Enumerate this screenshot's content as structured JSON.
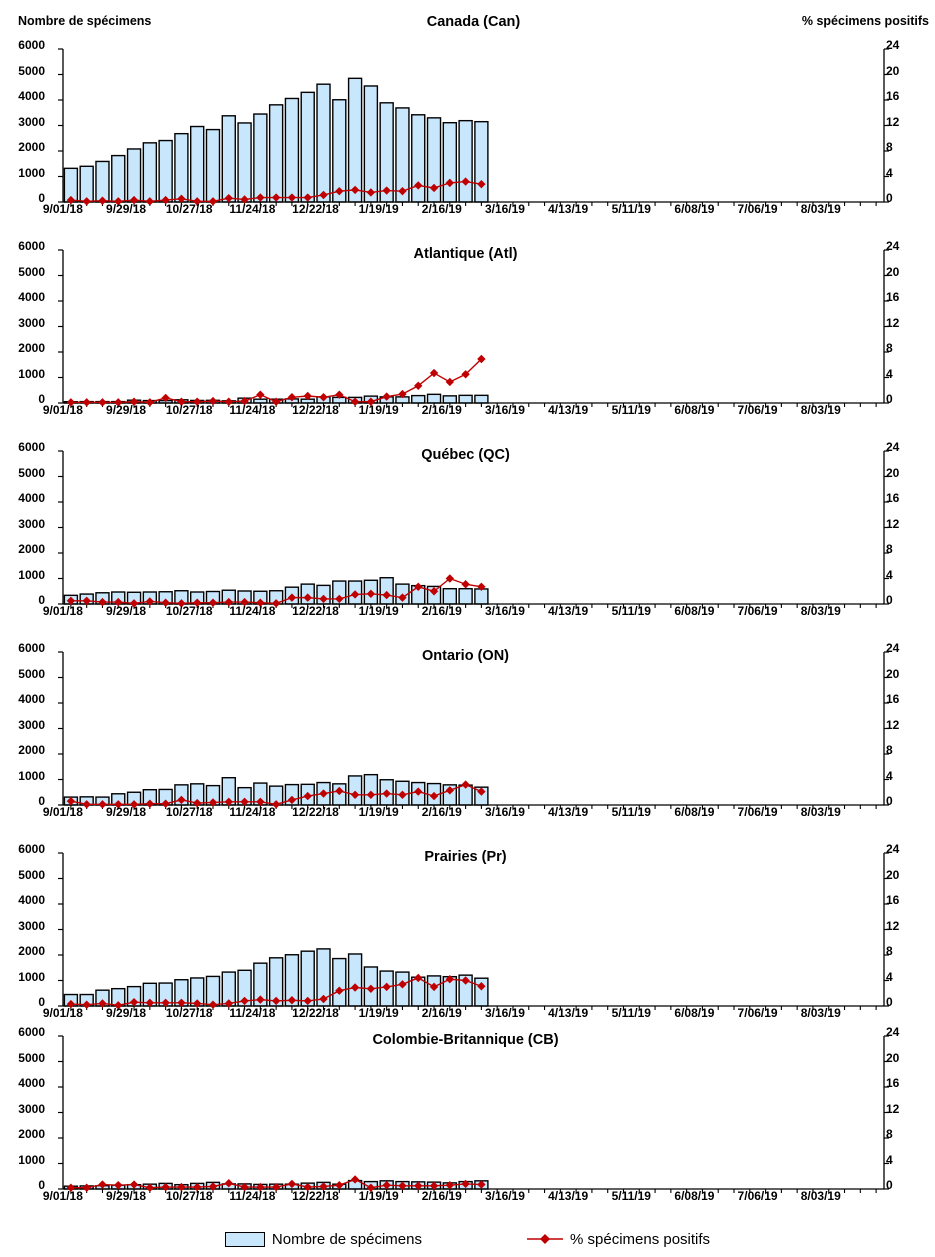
{
  "page": {
    "left_axis_title": "Nombre de spécimens",
    "right_axis_title": "% spécimens positifs"
  },
  "legend": {
    "bar_label": "Nombre de spécimens",
    "line_label": "% spécimens positifs"
  },
  "colors": {
    "bar_fill": "#C9E7FC",
    "bar_border": "#000000",
    "line": "#C00000"
  },
  "axes": {
    "left_max": 6000,
    "right_max": 24,
    "total_weeks": 52,
    "left_ticks": [
      "6000",
      "5000",
      "4000",
      "3000",
      "2000",
      "1000",
      "0"
    ],
    "right_ticks": [
      "24",
      "20",
      "16",
      "12",
      "8",
      "4",
      "0"
    ],
    "x_tick_labels": [
      "9/01/18",
      "9/29/18",
      "10/27/18",
      "11/24/18",
      "12/22/18",
      "1/19/19",
      "2/16/19",
      "3/16/19",
      "4/13/19",
      "5/11/19",
      "6/08/19",
      "7/06/19",
      "8/03/19"
    ]
  },
  "chart_data": [
    {
      "type": "bar+line",
      "title": "Canada (Can)",
      "region_code": "Can",
      "ylim_left": [
        0,
        6000
      ],
      "ylim_right": [
        0,
        24
      ],
      "categories": [
        "9/01/18",
        "9/08/18",
        "9/15/18",
        "9/22/18",
        "9/29/18",
        "10/06/18",
        "10/13/18",
        "10/20/18",
        "10/27/18",
        "11/03/18",
        "11/10/18",
        "11/17/18",
        "11/24/18",
        "12/01/18",
        "12/08/18",
        "12/15/18",
        "12/22/18",
        "12/29/18",
        "1/05/19",
        "1/12/19",
        "1/19/19",
        "1/26/19",
        "2/02/19",
        "2/09/19",
        "2/16/19",
        "2/23/19",
        "3/02/19"
      ],
      "series": [
        {
          "name": "Nombre de spécimens",
          "kind": "bar",
          "axis": "left",
          "values": [
            1320,
            1400,
            1590,
            1820,
            2080,
            2320,
            2410,
            2680,
            2960,
            2840,
            3380,
            3100,
            3450,
            3810,
            4060,
            4300,
            4620,
            4010,
            4850,
            4550,
            3890,
            3690,
            3420,
            3300,
            3110,
            3190,
            3150
          ]
        },
        {
          "name": "% spécimens positifs",
          "kind": "line",
          "axis": "right",
          "values": [
            0.3,
            0.1,
            0.2,
            0.1,
            0.3,
            0.1,
            0.3,
            0.5,
            0.1,
            0.1,
            0.6,
            0.4,
            0.7,
            0.7,
            0.7,
            0.7,
            1.1,
            1.7,
            1.9,
            1.5,
            1.8,
            1.7,
            2.6,
            2.2,
            3.0,
            3.2,
            2.8
          ]
        }
      ]
    },
    {
      "type": "bar+line",
      "title": "Atlantique (Atl)",
      "region_code": "Atl",
      "ylim_left": [
        0,
        6000
      ],
      "ylim_right": [
        0,
        24
      ],
      "categories": [
        "9/01/18",
        "9/08/18",
        "9/15/18",
        "9/22/18",
        "9/29/18",
        "10/06/18",
        "10/13/18",
        "10/20/18",
        "10/27/18",
        "11/03/18",
        "11/10/18",
        "11/17/18",
        "11/24/18",
        "12/01/18",
        "12/08/18",
        "12/15/18",
        "12/22/18",
        "12/29/18",
        "1/05/19",
        "1/12/19",
        "1/19/19",
        "1/26/19",
        "2/02/19",
        "2/09/19",
        "2/16/19",
        "2/23/19",
        "3/02/19"
      ],
      "series": [
        {
          "name": "Nombre de spécimens",
          "kind": "bar",
          "axis": "left",
          "values": [
            50,
            55,
            55,
            55,
            110,
            95,
            95,
            125,
            100,
            105,
            85,
            190,
            150,
            150,
            160,
            150,
            240,
            220,
            220,
            270,
            240,
            240,
            290,
            340,
            280,
            300,
            300
          ]
        },
        {
          "name": "% spécimens positifs",
          "kind": "line",
          "axis": "right",
          "values": [
            0.1,
            0.1,
            0.1,
            0.1,
            0.2,
            0.1,
            0.8,
            0.2,
            0.2,
            0.3,
            0.2,
            0.3,
            1.3,
            0.2,
            0.9,
            1.1,
            0.9,
            1.3,
            0.2,
            0.2,
            1.0,
            1.4,
            2.7,
            4.7,
            3.3,
            4.5,
            6.9
          ]
        }
      ]
    },
    {
      "type": "bar+line",
      "title": "Québec (QC)",
      "region_code": "QC",
      "ylim_left": [
        0,
        6000
      ],
      "ylim_right": [
        0,
        24
      ],
      "categories": [
        "9/01/18",
        "9/08/18",
        "9/15/18",
        "9/22/18",
        "9/29/18",
        "10/06/18",
        "10/13/18",
        "10/20/18",
        "10/27/18",
        "11/03/18",
        "11/10/18",
        "11/17/18",
        "11/24/18",
        "12/01/18",
        "12/08/18",
        "12/15/18",
        "12/22/18",
        "12/29/18",
        "1/05/19",
        "1/12/19",
        "1/19/19",
        "1/26/19",
        "2/02/19",
        "2/09/19",
        "2/16/19",
        "2/23/19",
        "3/02/19"
      ],
      "series": [
        {
          "name": "Nombre de spécimens",
          "kind": "bar",
          "axis": "left",
          "values": [
            340,
            390,
            440,
            470,
            460,
            470,
            480,
            520,
            470,
            490,
            540,
            510,
            500,
            520,
            660,
            780,
            730,
            900,
            900,
            930,
            1030,
            780,
            720,
            690,
            600,
            600,
            590
          ]
        },
        {
          "name": "% spécimens positifs",
          "kind": "line",
          "axis": "right",
          "values": [
            0.5,
            0.5,
            0.3,
            0.3,
            0.1,
            0.4,
            0.2,
            0.1,
            0.2,
            0.2,
            0.3,
            0.3,
            0.2,
            0.1,
            1.0,
            1.0,
            0.8,
            0.8,
            1.5,
            1.6,
            1.4,
            1.0,
            2.7,
            2.0,
            4.0,
            3.1,
            2.7
          ]
        }
      ]
    },
    {
      "type": "bar+line",
      "title": "Ontario (ON)",
      "region_code": "ON",
      "ylim_left": [
        0,
        6000
      ],
      "ylim_right": [
        0,
        24
      ],
      "categories": [
        "9/01/18",
        "9/08/18",
        "9/15/18",
        "9/22/18",
        "9/29/18",
        "10/06/18",
        "10/13/18",
        "10/20/18",
        "10/27/18",
        "11/03/18",
        "11/10/18",
        "11/17/18",
        "11/24/18",
        "12/01/18",
        "12/08/18",
        "12/15/18",
        "12/22/18",
        "12/29/18",
        "1/05/19",
        "1/12/19",
        "1/19/19",
        "1/26/19",
        "2/02/19",
        "2/09/19",
        "2/16/19",
        "2/23/19",
        "3/02/19"
      ],
      "series": [
        {
          "name": "Nombre de spécimens",
          "kind": "bar",
          "axis": "left",
          "values": [
            310,
            320,
            310,
            440,
            500,
            600,
            610,
            790,
            830,
            760,
            1070,
            680,
            860,
            740,
            800,
            810,
            880,
            830,
            1140,
            1190,
            990,
            930,
            880,
            840,
            790,
            780,
            700
          ]
        },
        {
          "name": "% spécimens positifs",
          "kind": "line",
          "axis": "right",
          "values": [
            0.6,
            0.1,
            0.1,
            0.1,
            0.1,
            0.2,
            0.2,
            0.8,
            0.3,
            0.4,
            0.5,
            0.5,
            0.5,
            0.1,
            0.8,
            1.4,
            1.8,
            2.2,
            1.6,
            1.6,
            1.8,
            1.6,
            2.1,
            1.4,
            2.3,
            3.2,
            2.1
          ]
        }
      ]
    },
    {
      "type": "bar+line",
      "title": "Prairies (Pr)",
      "region_code": "Pr",
      "ylim_left": [
        0,
        6000
      ],
      "ylim_right": [
        0,
        24
      ],
      "categories": [
        "9/01/18",
        "9/08/18",
        "9/15/18",
        "9/22/18",
        "9/29/18",
        "10/06/18",
        "10/13/18",
        "10/20/18",
        "10/27/18",
        "11/03/18",
        "11/10/18",
        "11/17/18",
        "11/24/18",
        "12/01/18",
        "12/08/18",
        "12/15/18",
        "12/22/18",
        "12/29/18",
        "1/05/19",
        "1/12/19",
        "1/19/19",
        "1/26/19",
        "2/02/19",
        "2/09/19",
        "2/16/19",
        "2/23/19",
        "3/02/19"
      ],
      "series": [
        {
          "name": "Nombre de spécimens",
          "kind": "bar",
          "axis": "left",
          "values": [
            450,
            450,
            620,
            680,
            760,
            890,
            900,
            1030,
            1100,
            1160,
            1330,
            1400,
            1680,
            1890,
            2010,
            2150,
            2240,
            1860,
            2040,
            1530,
            1370,
            1330,
            1130,
            1180,
            1150,
            1210,
            1090
          ]
        },
        {
          "name": "% spécimens positifs",
          "kind": "line",
          "axis": "right",
          "values": [
            0.3,
            0.2,
            0.4,
            0.1,
            0.6,
            0.5,
            0.5,
            0.5,
            0.4,
            0.2,
            0.4,
            0.8,
            1.0,
            0.8,
            0.9,
            0.8,
            1.1,
            2.4,
            2.9,
            2.7,
            3.0,
            3.4,
            4.4,
            3.0,
            4.2,
            4.0,
            3.1
          ]
        }
      ]
    },
    {
      "type": "bar+line",
      "title": "Colombie-Britannique (CB)",
      "region_code": "CB",
      "ylim_left": [
        0,
        6000
      ],
      "ylim_right": [
        0,
        24
      ],
      "categories": [
        "9/01/18",
        "9/08/18",
        "9/15/18",
        "9/22/18",
        "9/29/18",
        "10/06/18",
        "10/13/18",
        "10/20/18",
        "10/27/18",
        "11/03/18",
        "11/10/18",
        "11/17/18",
        "11/24/18",
        "12/01/18",
        "12/08/18",
        "12/15/18",
        "12/22/18",
        "12/29/18",
        "1/05/19",
        "1/12/19",
        "1/19/19",
        "1/26/19",
        "2/02/19",
        "2/09/19",
        "2/16/19",
        "2/23/19",
        "3/02/19"
      ],
      "series": [
        {
          "name": "Nombre de spécimens",
          "kind": "bar",
          "axis": "left",
          "values": [
            110,
            120,
            130,
            150,
            170,
            190,
            220,
            170,
            220,
            260,
            200,
            200,
            180,
            190,
            190,
            230,
            260,
            190,
            330,
            290,
            320,
            290,
            280,
            270,
            240,
            290,
            320
          ]
        },
        {
          "name": "% spécimens positifs",
          "kind": "line",
          "axis": "right",
          "values": [
            0.2,
            0.2,
            0.7,
            0.6,
            0.7,
            0.2,
            0.3,
            0.3,
            0.3,
            0.4,
            0.9,
            0.3,
            0.3,
            0.3,
            0.8,
            0.3,
            0.4,
            0.6,
            1.5,
            0.2,
            0.6,
            0.5,
            0.5,
            0.5,
            0.6,
            0.8,
            0.7
          ]
        }
      ]
    }
  ]
}
